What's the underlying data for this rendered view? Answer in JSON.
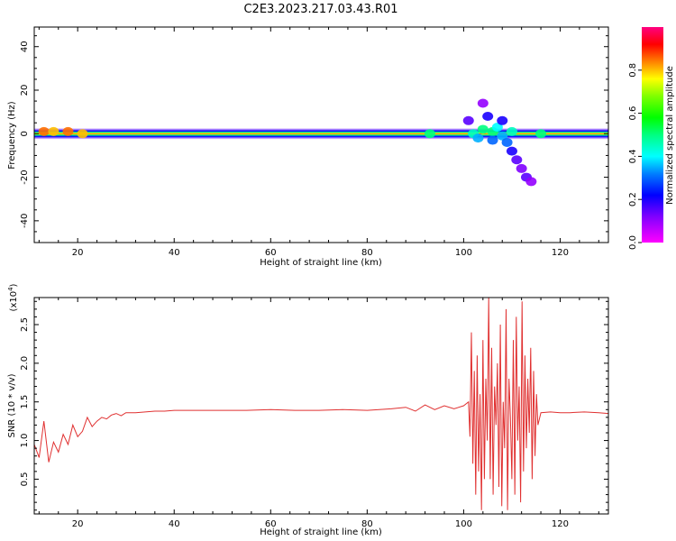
{
  "figure": {
    "title": "C2E3.2023.217.03.43.R01"
  },
  "chart_data": [
    {
      "type": "heatmap",
      "xlabel": "Height of straight line (km)",
      "ylabel": "Frequency (Hz)",
      "xlim": [
        11,
        130
      ],
      "ylim": [
        -50,
        49
      ],
      "x_ticks": [
        20,
        40,
        60,
        80,
        100,
        120
      ],
      "x_tick_labels": [
        "20",
        "40",
        "60",
        "80",
        "100",
        "120"
      ],
      "y_ticks": [
        -40,
        -20,
        0,
        20,
        40
      ],
      "y_tick_labels": [
        "-40",
        "-20",
        "0",
        "20",
        "40"
      ],
      "colorbar": {
        "label": "Normalized spectral amplitude",
        "range": [
          0,
          1
        ],
        "ticks": [
          0.0,
          0.2,
          0.4,
          0.6,
          0.8
        ],
        "tick_labels": [
          "0.0",
          "0.2",
          "0.4",
          "0.6",
          "0.8"
        ],
        "colormap": "gist_rainbow_reversed"
      },
      "band": {
        "x": [
          11,
          130
        ],
        "y": 0,
        "amplitude": 0.85
      },
      "blobs": [
        {
          "x": 13,
          "y": 1,
          "amplitude": 0.85
        },
        {
          "x": 15,
          "y": 1,
          "amplitude": 0.8
        },
        {
          "x": 18,
          "y": 1,
          "amplitude": 0.85
        },
        {
          "x": 21,
          "y": 0,
          "amplitude": 0.8
        },
        {
          "x": 93,
          "y": 0,
          "amplitude": 0.5
        },
        {
          "x": 101,
          "y": 6,
          "amplitude": 0.15
        },
        {
          "x": 102,
          "y": 0,
          "amplitude": 0.45
        },
        {
          "x": 103,
          "y": -2,
          "amplitude": 0.35
        },
        {
          "x": 104,
          "y": 2,
          "amplitude": 0.5
        },
        {
          "x": 104,
          "y": 14,
          "amplitude": 0.1
        },
        {
          "x": 105,
          "y": 8,
          "amplitude": 0.2
        },
        {
          "x": 106,
          "y": 1,
          "amplitude": 0.5
        },
        {
          "x": 106,
          "y": -3,
          "amplitude": 0.3
        },
        {
          "x": 107,
          "y": 3,
          "amplitude": 0.4
        },
        {
          "x": 108,
          "y": -1,
          "amplitude": 0.35
        },
        {
          "x": 108,
          "y": 6,
          "amplitude": 0.2
        },
        {
          "x": 109,
          "y": -4,
          "amplitude": 0.3
        },
        {
          "x": 110,
          "y": 1,
          "amplitude": 0.45
        },
        {
          "x": 110,
          "y": -8,
          "amplitude": 0.2
        },
        {
          "x": 111,
          "y": -12,
          "amplitude": 0.15
        },
        {
          "x": 112,
          "y": -16,
          "amplitude": 0.12
        },
        {
          "x": 113,
          "y": -20,
          "amplitude": 0.15
        },
        {
          "x": 114,
          "y": -22,
          "amplitude": 0.1
        },
        {
          "x": 116,
          "y": 0,
          "amplitude": 0.5
        }
      ]
    },
    {
      "type": "line",
      "xlabel": "Height of straight line (km)",
      "ylabel": "SNR (10 * v/v)",
      "scale_label": "(x10",
      "scale_exponent": "4",
      "scale_close": ")",
      "xlim": [
        11,
        130
      ],
      "ylim": [
        0.05,
        2.85
      ],
      "x_ticks": [
        20,
        40,
        60,
        80,
        100,
        120
      ],
      "x_tick_labels": [
        "20",
        "40",
        "60",
        "80",
        "100",
        "120"
      ],
      "y_ticks": [
        0.5,
        1.0,
        1.5,
        2.0,
        2.5
      ],
      "y_tick_labels": [
        "0.5",
        "1.0",
        "1.5",
        "2.0",
        "2.5"
      ],
      "series": [
        {
          "color": "#e03030",
          "x": [
            11,
            12,
            13,
            14,
            15,
            16,
            17,
            18,
            19,
            20,
            21,
            22,
            23,
            24,
            25,
            26,
            27,
            28,
            29,
            30,
            32,
            34,
            36,
            38,
            40,
            45,
            50,
            55,
            60,
            65,
            70,
            75,
            80,
            85,
            88,
            90,
            92,
            94,
            96,
            98,
            100,
            101,
            101.3,
            101.6,
            101.9,
            102.2,
            102.5,
            102.8,
            103.1,
            103.4,
            103.7,
            104,
            104.3,
            104.6,
            104.9,
            105.2,
            105.5,
            105.8,
            106.1,
            106.4,
            106.7,
            107,
            107.3,
            107.6,
            107.9,
            108.2,
            108.5,
            108.8,
            109.1,
            109.4,
            109.7,
            110,
            110.3,
            110.6,
            110.9,
            111.2,
            111.5,
            111.8,
            112.1,
            112.4,
            112.7,
            113,
            113.3,
            113.6,
            113.9,
            114.2,
            114.5,
            114.8,
            115.1,
            115.4,
            116,
            118,
            120,
            122,
            125,
            128,
            130
          ],
          "values": [
            0.95,
            0.78,
            1.25,
            0.72,
            0.98,
            0.85,
            1.08,
            0.95,
            1.2,
            1.05,
            1.12,
            1.3,
            1.18,
            1.25,
            1.3,
            1.28,
            1.33,
            1.35,
            1.32,
            1.36,
            1.36,
            1.37,
            1.38,
            1.38,
            1.39,
            1.39,
            1.39,
            1.39,
            1.4,
            1.39,
            1.39,
            1.4,
            1.39,
            1.41,
            1.43,
            1.38,
            1.46,
            1.4,
            1.45,
            1.41,
            1.45,
            1.5,
            1.05,
            2.4,
            0.7,
            1.9,
            0.3,
            2.1,
            0.6,
            1.6,
            0.1,
            2.3,
            0.5,
            1.8,
            1.0,
            2.85,
            0.5,
            2.2,
            0.3,
            1.7,
            1.2,
            2.0,
            0.4,
            2.5,
            0.15,
            1.5,
            0.9,
            2.7,
            0.1,
            1.8,
            1.3,
            0.5,
            2.3,
            0.3,
            2.6,
            1.0,
            1.7,
            0.2,
            2.8,
            0.6,
            2.1,
            0.9,
            1.8,
            1.1,
            2.2,
            0.5,
            1.9,
            0.8,
            1.6,
            1.2,
            1.36,
            1.37,
            1.36,
            1.36,
            1.37,
            1.36,
            1.35
          ]
        }
      ]
    }
  ]
}
